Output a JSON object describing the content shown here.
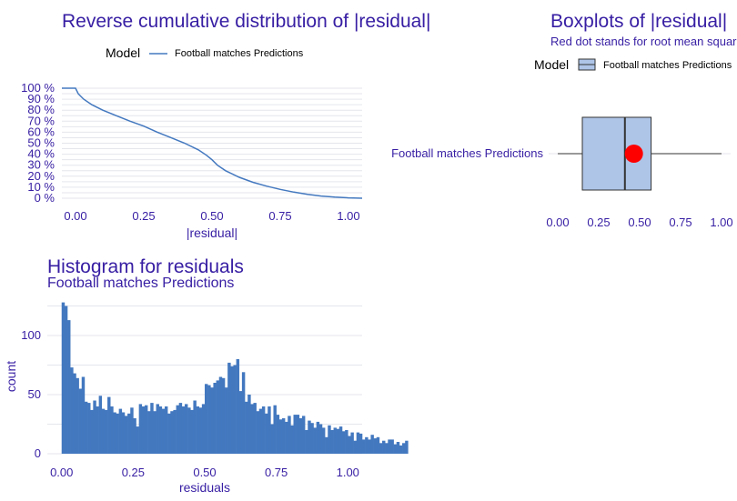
{
  "colors": {
    "accent": "#371ea3",
    "series": "#4378bf",
    "box_fill": "#aec5e8",
    "rmse_dot": "#ff0000"
  },
  "chart_data": [
    {
      "type": "line",
      "title": "Reverse cumulative distribution of |residual|",
      "xlabel": "|residual|",
      "ylabel": "",
      "legend_title": "Model",
      "legend_position": "top",
      "xlim": [
        0,
        1.05
      ],
      "ylim": [
        0,
        1
      ],
      "x_ticks": [
        "0.00",
        "0.25",
        "0.50",
        "0.75",
        "1.00"
      ],
      "y_ticks": [
        "0 %",
        "10 %",
        "20 %",
        "30 %",
        "40 %",
        "50 %",
        "60 %",
        "70 %",
        "80 %",
        "90 %",
        "100 %"
      ],
      "series": [
        {
          "name": "Football matches Predictions",
          "x": [
            -0.05,
            0.0,
            0.01,
            0.03,
            0.06,
            0.1,
            0.15,
            0.2,
            0.25,
            0.3,
            0.35,
            0.4,
            0.45,
            0.48,
            0.5,
            0.52,
            0.55,
            0.6,
            0.65,
            0.7,
            0.75,
            0.8,
            0.85,
            0.9,
            0.95,
            1.0,
            1.05
          ],
          "y": [
            1.0,
            1.0,
            0.95,
            0.9,
            0.85,
            0.8,
            0.75,
            0.7,
            0.655,
            0.6,
            0.55,
            0.5,
            0.44,
            0.39,
            0.35,
            0.3,
            0.25,
            0.19,
            0.145,
            0.11,
            0.08,
            0.055,
            0.035,
            0.02,
            0.01,
            0.003,
            0.0
          ]
        }
      ]
    },
    {
      "type": "boxplot",
      "title": "Boxplots of |residual|",
      "subtitle": "Red dot stands for root mean square of residuals",
      "legend_title": "Model",
      "legend_position": "top",
      "xlim": [
        -0.05,
        1.05
      ],
      "x_ticks": [
        "0.00",
        "0.25",
        "0.50",
        "0.75",
        "1.00"
      ],
      "grid": true,
      "boxes": [
        {
          "name": "Football matches Predictions",
          "whisker_low": 0.0,
          "q1": 0.15,
          "median": 0.41,
          "q3": 0.57,
          "whisker_high": 1.0,
          "rmse": 0.465
        }
      ]
    },
    {
      "type": "bar",
      "title": "Histogram for residuals",
      "subtitle": "Football matches Predictions",
      "xlabel": "residuals",
      "ylabel": "count",
      "xlim": [
        -0.05,
        1.05
      ],
      "ylim": [
        0,
        130
      ],
      "x_ticks": [
        "0.00",
        "0.25",
        "0.50",
        "0.75",
        "1.00"
      ],
      "y_ticks": [
        "0",
        "50",
        "100"
      ],
      "bin_start": 0.0,
      "bin_width": 0.01,
      "counts": [
        128,
        125,
        113,
        73,
        68,
        64,
        55,
        65,
        44,
        43,
        37,
        45,
        40,
        49,
        38,
        37,
        48,
        40,
        35,
        34,
        38,
        35,
        32,
        34,
        39,
        30,
        23,
        42,
        40,
        41,
        36,
        43,
        36,
        42,
        40,
        38,
        40,
        34,
        36,
        37,
        41,
        43,
        40,
        42,
        39,
        37,
        45,
        40,
        39,
        42,
        59,
        58,
        56,
        60,
        62,
        65,
        64,
        56,
        77,
        74,
        75,
        80,
        53,
        69,
        44,
        50,
        42,
        43,
        36,
        38,
        40,
        34,
        40,
        25,
        41,
        33,
        29,
        30,
        27,
        32,
        24,
        33,
        33,
        30,
        32,
        20,
        28,
        26,
        22,
        27,
        25,
        22,
        14,
        24,
        20,
        22,
        21,
        23,
        19,
        20,
        15,
        18,
        11,
        18,
        17,
        12,
        14,
        12,
        16,
        13,
        14,
        9,
        11,
        9,
        12,
        12,
        8,
        10,
        7,
        9,
        11
      ]
    }
  ]
}
